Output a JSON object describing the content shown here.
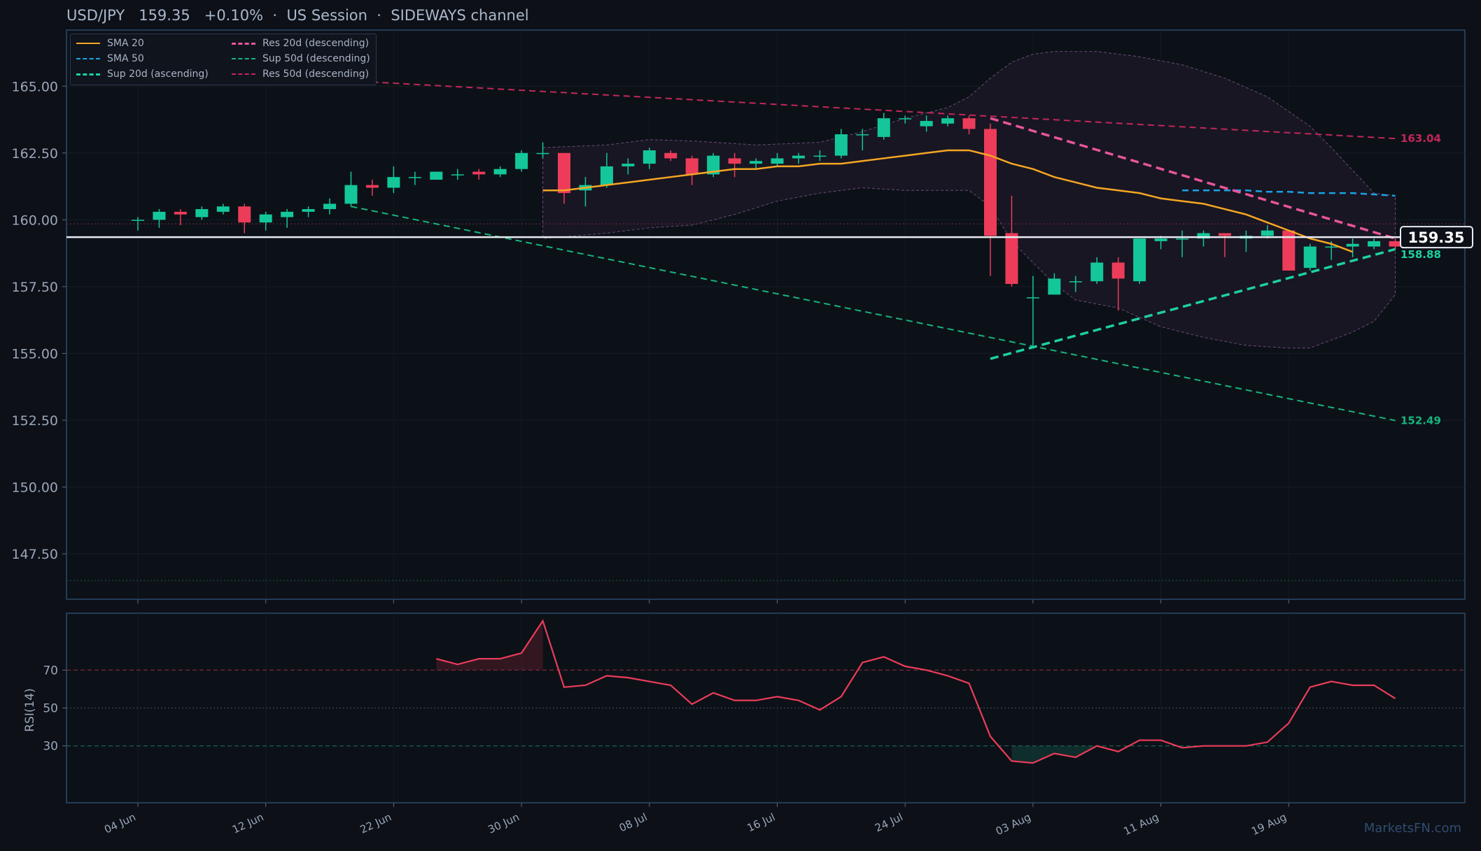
{
  "header": {
    "symbol": "USD/JPY",
    "price": "159.35",
    "change": "+0.10%",
    "sep1": "·",
    "session": "US Session",
    "sep2": "·",
    "channel": "SIDEWAYS channel"
  },
  "watermark": "MarketsFN.com",
  "legend": [
    {
      "label": "SMA 20",
      "color": "#f5a623",
      "dash": "solid",
      "width": 2
    },
    {
      "label": "SMA 50",
      "color": "#1aa3e8",
      "dash": "dashed",
      "width": 2
    },
    {
      "label": "Sup 20d (ascending)",
      "color": "#1dd1a1",
      "dash": "dashed",
      "width": 3
    },
    {
      "label": "Res 20d (descending)",
      "color": "#e8559b",
      "dash": "dashed",
      "width": 3
    },
    {
      "label": "Sup 50d (descending)",
      "color": "#17b47c",
      "dash": "dashed",
      "width": 2
    },
    {
      "label": "Res 50d (descending)",
      "color": "#c2275a",
      "dash": "dashed",
      "width": 2
    }
  ],
  "colors": {
    "up": "#14c79a",
    "down": "#ec3c5a",
    "sma20": "#f5a623",
    "sma50": "#1aa3e8",
    "sup20": "#1dd1a1",
    "res20": "#e8559b",
    "sup50": "#17b47c",
    "res50": "#c2275a",
    "rsi": "#ec3c5a",
    "band": "#6b4a7a",
    "axis": "#2a4a6a",
    "text": "#9aa6b8"
  },
  "chart_data": {
    "type": "candlestick",
    "price_axis": {
      "ylim": [
        145.8,
        167.1
      ],
      "ticks": [
        "147.50",
        "150.00",
        "152.50",
        "155.00",
        "157.50",
        "160.00",
        "162.50",
        "165.00"
      ],
      "tick_values": [
        147.5,
        150,
        152.5,
        155,
        157.5,
        160,
        162.5,
        165
      ]
    },
    "x_axis": {
      "labels": [
        "04 Jun",
        "12 Jun",
        "22 Jun",
        "30 Jun",
        "08 Jul",
        "16 Jul",
        "24 Jul",
        "03 Aug",
        "11 Aug",
        "19 Aug"
      ],
      "label_index": [
        0,
        6,
        12,
        18,
        24,
        30,
        36,
        42,
        48,
        54
      ]
    },
    "candles": [
      {
        "o": 160.0,
        "h": 160.1,
        "l": 159.6,
        "c": 160.0
      },
      {
        "o": 160.0,
        "h": 160.4,
        "l": 159.7,
        "c": 160.3
      },
      {
        "o": 160.3,
        "h": 160.4,
        "l": 159.8,
        "c": 160.2
      },
      {
        "o": 160.1,
        "h": 160.5,
        "l": 160.0,
        "c": 160.4
      },
      {
        "o": 160.3,
        "h": 160.6,
        "l": 160.2,
        "c": 160.5
      },
      {
        "o": 160.5,
        "h": 160.6,
        "l": 159.5,
        "c": 159.9
      },
      {
        "o": 159.9,
        "h": 160.3,
        "l": 159.6,
        "c": 160.2
      },
      {
        "o": 160.1,
        "h": 160.4,
        "l": 159.7,
        "c": 160.3
      },
      {
        "o": 160.3,
        "h": 160.5,
        "l": 160.1,
        "c": 160.4
      },
      {
        "o": 160.4,
        "h": 160.8,
        "l": 160.2,
        "c": 160.6
      },
      {
        "o": 160.6,
        "h": 161.8,
        "l": 160.5,
        "c": 161.3
      },
      {
        "o": 161.3,
        "h": 161.5,
        "l": 160.9,
        "c": 161.2
      },
      {
        "o": 161.2,
        "h": 162.0,
        "l": 161.0,
        "c": 161.6
      },
      {
        "o": 161.6,
        "h": 161.8,
        "l": 161.3,
        "c": 161.6
      },
      {
        "o": 161.5,
        "h": 161.8,
        "l": 161.5,
        "c": 161.8
      },
      {
        "o": 161.7,
        "h": 161.9,
        "l": 161.5,
        "c": 161.7
      },
      {
        "o": 161.8,
        "h": 161.9,
        "l": 161.5,
        "c": 161.7
      },
      {
        "o": 161.7,
        "h": 162.0,
        "l": 161.6,
        "c": 161.9
      },
      {
        "o": 161.9,
        "h": 162.6,
        "l": 161.8,
        "c": 162.5
      },
      {
        "o": 162.5,
        "h": 162.9,
        "l": 162.3,
        "c": 162.5
      },
      {
        "o": 162.5,
        "h": 162.5,
        "l": 160.6,
        "c": 161.0
      },
      {
        "o": 161.1,
        "h": 161.6,
        "l": 160.5,
        "c": 161.3
      },
      {
        "o": 161.3,
        "h": 162.5,
        "l": 161.2,
        "c": 162.0
      },
      {
        "o": 162.0,
        "h": 162.3,
        "l": 161.7,
        "c": 162.1
      },
      {
        "o": 162.1,
        "h": 162.7,
        "l": 161.9,
        "c": 162.6
      },
      {
        "o": 162.5,
        "h": 162.6,
        "l": 162.2,
        "c": 162.3
      },
      {
        "o": 162.3,
        "h": 162.4,
        "l": 161.3,
        "c": 161.7
      },
      {
        "o": 161.7,
        "h": 162.5,
        "l": 161.6,
        "c": 162.4
      },
      {
        "o": 162.3,
        "h": 162.5,
        "l": 161.6,
        "c": 162.1
      },
      {
        "o": 162.1,
        "h": 162.3,
        "l": 161.9,
        "c": 162.2
      },
      {
        "o": 162.1,
        "h": 162.5,
        "l": 162.0,
        "c": 162.3
      },
      {
        "o": 162.3,
        "h": 162.5,
        "l": 162.1,
        "c": 162.4
      },
      {
        "o": 162.4,
        "h": 162.6,
        "l": 162.2,
        "c": 162.4
      },
      {
        "o": 162.4,
        "h": 163.4,
        "l": 162.3,
        "c": 163.2
      },
      {
        "o": 163.2,
        "h": 163.4,
        "l": 162.6,
        "c": 163.2
      },
      {
        "o": 163.1,
        "h": 164.0,
        "l": 163.0,
        "c": 163.8
      },
      {
        "o": 163.8,
        "h": 163.9,
        "l": 163.6,
        "c": 163.8
      },
      {
        "o": 163.5,
        "h": 163.9,
        "l": 163.3,
        "c": 163.7
      },
      {
        "o": 163.6,
        "h": 163.9,
        "l": 163.5,
        "c": 163.8
      },
      {
        "o": 163.8,
        "h": 163.9,
        "l": 163.2,
        "c": 163.4
      },
      {
        "o": 163.4,
        "h": 163.6,
        "l": 157.9,
        "c": 159.4
      },
      {
        "o": 159.5,
        "h": 160.9,
        "l": 157.5,
        "c": 157.6
      },
      {
        "o": 157.1,
        "h": 157.9,
        "l": 155.3,
        "c": 157.1
      },
      {
        "o": 157.2,
        "h": 158.0,
        "l": 157.2,
        "c": 157.8
      },
      {
        "o": 157.7,
        "h": 157.9,
        "l": 157.3,
        "c": 157.7
      },
      {
        "o": 157.7,
        "h": 158.6,
        "l": 157.6,
        "c": 158.4
      },
      {
        "o": 158.4,
        "h": 158.6,
        "l": 156.6,
        "c": 157.8
      },
      {
        "o": 157.7,
        "h": 159.3,
        "l": 157.6,
        "c": 159.3
      },
      {
        "o": 159.2,
        "h": 159.4,
        "l": 158.9,
        "c": 159.3
      },
      {
        "o": 159.3,
        "h": 159.6,
        "l": 158.6,
        "c": 159.3
      },
      {
        "o": 159.3,
        "h": 159.6,
        "l": 159.0,
        "c": 159.5
      },
      {
        "o": 159.5,
        "h": 159.5,
        "l": 158.6,
        "c": 159.4
      },
      {
        "o": 159.3,
        "h": 159.6,
        "l": 158.8,
        "c": 159.4
      },
      {
        "o": 159.4,
        "h": 159.8,
        "l": 159.3,
        "c": 159.6
      },
      {
        "o": 159.6,
        "h": 159.6,
        "l": 158.1,
        "c": 158.1
      },
      {
        "o": 158.2,
        "h": 159.1,
        "l": 158.1,
        "c": 159.0
      },
      {
        "o": 159.0,
        "h": 159.2,
        "l": 158.5,
        "c": 159.0
      },
      {
        "o": 159.0,
        "h": 159.3,
        "l": 158.6,
        "c": 159.1
      },
      {
        "o": 159.0,
        "h": 159.3,
        "l": 158.9,
        "c": 159.2
      },
      {
        "o": 159.2,
        "h": 159.3,
        "l": 158.9,
        "c": 159.0
      }
    ],
    "sma20": {
      "start": 19,
      "values": [
        161.1,
        161.1,
        161.2,
        161.3,
        161.4,
        161.5,
        161.6,
        161.7,
        161.8,
        161.9,
        161.9,
        162.0,
        162.0,
        162.1,
        162.1,
        162.2,
        162.3,
        162.4,
        162.5,
        162.6,
        162.6,
        162.4,
        162.1,
        161.9,
        161.6,
        161.4,
        161.2,
        161.1,
        161.0,
        160.8,
        160.7,
        160.6,
        160.4,
        160.2,
        159.9,
        159.6,
        159.3,
        159.1,
        158.8
      ]
    },
    "sma50": {
      "start": 49,
      "values": [
        161.1,
        161.1,
        161.1,
        161.1,
        161.05,
        161.05,
        161.0,
        161.0,
        161.0,
        160.95,
        160.9
      ]
    },
    "sup20": {
      "x": [
        40,
        59
      ],
      "y": [
        154.8,
        158.9
      ],
      "label": "158.88"
    },
    "res20": {
      "x": [
        40,
        59
      ],
      "y": [
        163.8,
        159.3
      ]
    },
    "sup50": {
      "x": [
        10,
        59
      ],
      "y": [
        160.5,
        152.49
      ],
      "label": "152.49"
    },
    "res50": {
      "x": [
        10,
        59
      ],
      "y": [
        165.2,
        163.04
      ],
      "label": "163.04"
    },
    "last_price": {
      "value": 159.35,
      "label": "159.35"
    },
    "ref_lines": [
      159.85,
      146.5
    ],
    "bands": {
      "upper": [
        [
          19,
          162.7
        ],
        [
          22,
          162.8
        ],
        [
          24,
          163.0
        ],
        [
          26,
          162.95
        ],
        [
          29,
          162.8
        ],
        [
          32,
          162.9
        ],
        [
          34,
          163.3
        ],
        [
          36,
          163.8
        ],
        [
          38,
          164.2
        ],
        [
          39,
          164.6
        ],
        [
          40,
          165.3
        ],
        [
          41,
          165.9
        ],
        [
          42,
          166.2
        ],
        [
          43,
          166.3
        ],
        [
          45,
          166.3
        ],
        [
          47,
          166.1
        ],
        [
          49,
          165.8
        ],
        [
          51,
          165.3
        ],
        [
          53,
          164.6
        ],
        [
          55,
          163.5
        ],
        [
          56,
          162.7
        ],
        [
          58,
          161.0
        ],
        [
          59,
          160.9
        ]
      ],
      "lower": [
        [
          59,
          157.2
        ],
        [
          58,
          156.2
        ],
        [
          57,
          155.8
        ],
        [
          56,
          155.5
        ],
        [
          55,
          155.2
        ],
        [
          54,
          155.2
        ],
        [
          52,
          155.3
        ],
        [
          50,
          155.6
        ],
        [
          48,
          156.0
        ],
        [
          46,
          156.7
        ],
        [
          44,
          157.0
        ],
        [
          43,
          157.6
        ],
        [
          42,
          158.4
        ],
        [
          41,
          159.2
        ],
        [
          40,
          160.5
        ],
        [
          39,
          161.1
        ],
        [
          38,
          161.1
        ],
        [
          36,
          161.1
        ],
        [
          34,
          161.2
        ],
        [
          32,
          161.0
        ],
        [
          30,
          160.7
        ],
        [
          28,
          160.2
        ],
        [
          26,
          159.8
        ],
        [
          24,
          159.7
        ],
        [
          22,
          159.5
        ],
        [
          19,
          159.3
        ]
      ]
    },
    "rsi": {
      "label": "RSI(14)",
      "ylim": [
        0,
        100
      ],
      "ticks": [
        "30",
        "50",
        "70"
      ],
      "tick_values": [
        30,
        50,
        70
      ],
      "start": 14,
      "values": [
        76,
        73,
        76,
        76,
        79,
        96,
        61,
        62,
        67,
        66,
        64,
        62,
        52,
        58,
        54,
        54,
        56,
        54,
        49,
        56,
        74,
        77,
        72,
        70,
        67,
        63,
        35,
        22,
        21,
        26,
        24,
        30,
        27,
        33,
        33,
        29,
        30,
        30,
        30,
        32,
        42,
        61,
        64,
        62,
        62,
        55
      ]
    }
  }
}
